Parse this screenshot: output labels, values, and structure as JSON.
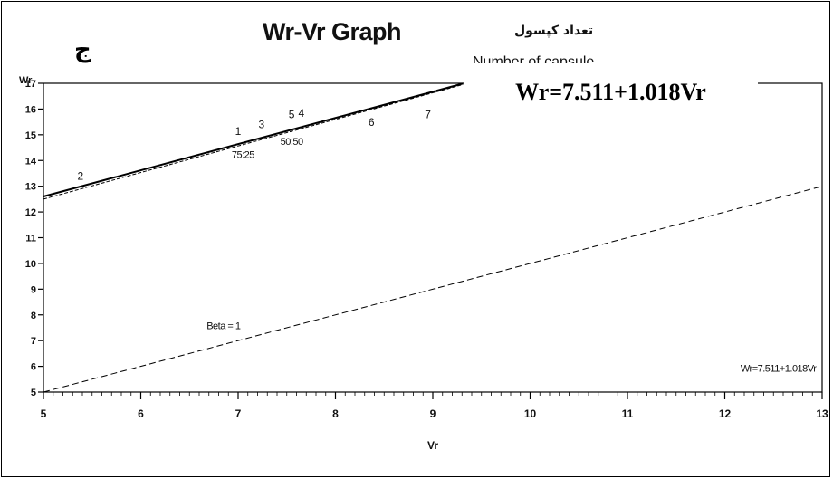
{
  "corner_label": "ج",
  "arabic_title": "تعداد کپسول",
  "partial_text": "Number of capsule",
  "equation_box": "Wr=7.511+1.018Vr",
  "chart_data": {
    "type": "line",
    "title": "Wr-Vr Graph",
    "xlabel": "Vr",
    "ylabel": "Wr",
    "xlim": [
      5,
      13
    ],
    "ylim": [
      5,
      17
    ],
    "x_ticks": [
      5,
      6,
      7,
      8,
      9,
      10,
      11,
      12,
      13
    ],
    "y_ticks": [
      5,
      6,
      7,
      8,
      9,
      10,
      11,
      12,
      13,
      14,
      15,
      16,
      17
    ],
    "grid": false,
    "series": [
      {
        "name": "",
        "style": "solid",
        "x": [
          5.0,
          9.31
        ],
        "y": [
          12.6,
          16.99
        ]
      },
      {
        "name": "",
        "style": "dashed",
        "x": [
          5.0,
          9.31
        ],
        "y": [
          12.5,
          16.95
        ]
      },
      {
        "name": "",
        "style": "dashed",
        "x": [
          5.0,
          13.0
        ],
        "y": [
          5.0,
          13.0
        ]
      }
    ],
    "points": [
      {
        "label": "2",
        "x": 5.38,
        "y": 13.25
      },
      {
        "label": "1",
        "x": 7.0,
        "y": 15.0
      },
      {
        "label": "3",
        "x": 7.24,
        "y": 15.25
      },
      {
        "label": "5",
        "x": 7.55,
        "y": 15.65
      },
      {
        "label": "4",
        "x": 7.65,
        "y": 15.7
      },
      {
        "label": "6",
        "x": 8.37,
        "y": 15.35
      },
      {
        "label": "7",
        "x": 8.95,
        "y": 15.65
      }
    ],
    "annotations": [
      {
        "text": "75:25",
        "x": 7.05,
        "y": 14.1
      },
      {
        "text": "50:50",
        "x": 7.55,
        "y": 14.6
      },
      {
        "text": "Beta = 1",
        "x": 6.85,
        "y": 7.45
      },
      {
        "text": "Wr=7.511+1.018Vr",
        "x": 12.55,
        "y": 5.8
      }
    ]
  }
}
